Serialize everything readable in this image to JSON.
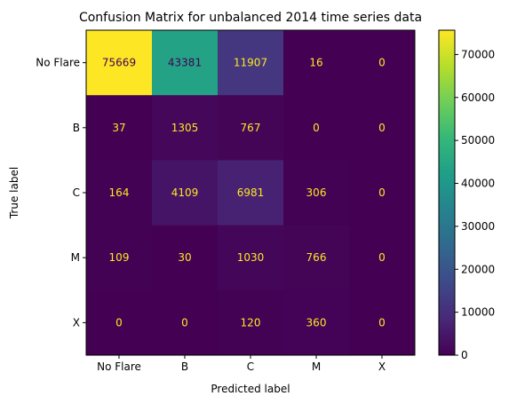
{
  "chart_data": {
    "type": "heatmap",
    "title": "Confusion Matrix for unbalanced 2014 time series data",
    "xlabel": "Predicted label",
    "ylabel": "True label",
    "x_categories": [
      "No Flare",
      "B",
      "C",
      "M",
      "X"
    ],
    "y_categories": [
      "No Flare",
      "B",
      "C",
      "M",
      "X"
    ],
    "values": [
      [
        75669,
        43381,
        11907,
        16,
        0
      ],
      [
        37,
        1305,
        767,
        0,
        0
      ],
      [
        164,
        4109,
        6981,
        306,
        0
      ],
      [
        109,
        30,
        1030,
        766,
        0
      ],
      [
        0,
        0,
        120,
        360,
        0
      ]
    ],
    "colormap": "viridis",
    "colorbar": {
      "range": [
        0,
        75669
      ],
      "ticks": [
        0,
        10000,
        20000,
        30000,
        40000,
        50000,
        60000,
        70000
      ]
    },
    "grid": false
  }
}
